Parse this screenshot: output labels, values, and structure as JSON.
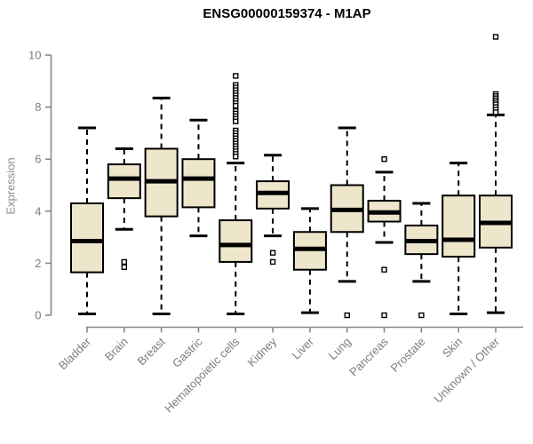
{
  "chart_data": {
    "type": "boxplot",
    "title": "ENSG00000159374 - M1AP",
    "ylabel": "Expression",
    "xlabel": "",
    "ylim": [
      0,
      10
    ],
    "yticks": [
      0,
      2,
      4,
      6,
      8,
      10
    ],
    "grid": false,
    "legend": null,
    "colors": {
      "box_fill": "#ede6cb",
      "box_stroke": "#000000",
      "axis": "#888888",
      "tick_label": "#7d7d7d",
      "title": "#000000"
    },
    "categories": [
      "Bladder",
      "Brain",
      "Breast",
      "Gastric",
      "Hematopoietic cells",
      "Kidney",
      "Liver",
      "Lung",
      "Pancreas",
      "Prostate",
      "Skin",
      "Unknown / Other"
    ],
    "boxes": [
      {
        "label": "Bladder",
        "low": 0.05,
        "q1": 1.65,
        "median": 2.85,
        "q3": 4.3,
        "high": 7.2,
        "outliers": []
      },
      {
        "label": "Brain",
        "low": 3.3,
        "q1": 4.5,
        "median": 5.25,
        "q3": 5.8,
        "high": 6.4,
        "outliers": [
          2.05,
          1.85
        ]
      },
      {
        "label": "Breast",
        "low": 0.05,
        "q1": 3.8,
        "median": 5.15,
        "q3": 6.4,
        "high": 8.35,
        "outliers": []
      },
      {
        "label": "Gastric",
        "low": 3.05,
        "q1": 4.15,
        "median": 5.25,
        "q3": 6.0,
        "high": 7.5,
        "outliers": []
      },
      {
        "label": "Hematopoietic cells",
        "low": 0.05,
        "q1": 2.05,
        "median": 2.7,
        "q3": 3.65,
        "high": 5.85,
        "outliers": [
          9.2,
          8.85,
          8.75,
          8.65,
          8.55,
          8.45,
          8.35,
          8.25,
          8.15,
          8.05,
          7.85,
          7.75,
          7.65,
          7.55,
          7.45,
          7.1,
          7.0,
          6.9,
          6.8,
          6.7,
          6.6,
          6.5,
          6.4,
          6.3,
          6.2,
          6.1
        ]
      },
      {
        "label": "Kidney",
        "low": 3.05,
        "q1": 4.1,
        "median": 4.7,
        "q3": 5.15,
        "high": 6.15,
        "outliers": [
          2.4,
          2.05
        ]
      },
      {
        "label": "Liver",
        "low": 0.1,
        "q1": 1.75,
        "median": 2.55,
        "q3": 3.2,
        "high": 4.1,
        "outliers": []
      },
      {
        "label": "Lung",
        "low": 1.3,
        "q1": 3.2,
        "median": 4.05,
        "q3": 5.0,
        "high": 7.2,
        "outliers": [
          0.0
        ]
      },
      {
        "label": "Pancreas",
        "low": 2.8,
        "q1": 3.6,
        "median": 3.95,
        "q3": 4.4,
        "high": 5.5,
        "outliers": [
          6.0,
          1.75,
          0.0
        ]
      },
      {
        "label": "Prostate",
        "low": 1.3,
        "q1": 2.35,
        "median": 2.85,
        "q3": 3.45,
        "high": 4.3,
        "outliers": [
          0.0
        ]
      },
      {
        "label": "Skin",
        "low": 0.05,
        "q1": 2.25,
        "median": 2.9,
        "q3": 4.6,
        "high": 5.85,
        "outliers": []
      },
      {
        "label": "Unknown / Other",
        "low": 0.1,
        "q1": 2.6,
        "median": 3.55,
        "q3": 4.6,
        "high": 7.7,
        "outliers": [
          10.7,
          8.5,
          8.42,
          8.34,
          8.26,
          8.18,
          8.1,
          8.0,
          7.9,
          7.8
        ]
      }
    ]
  }
}
